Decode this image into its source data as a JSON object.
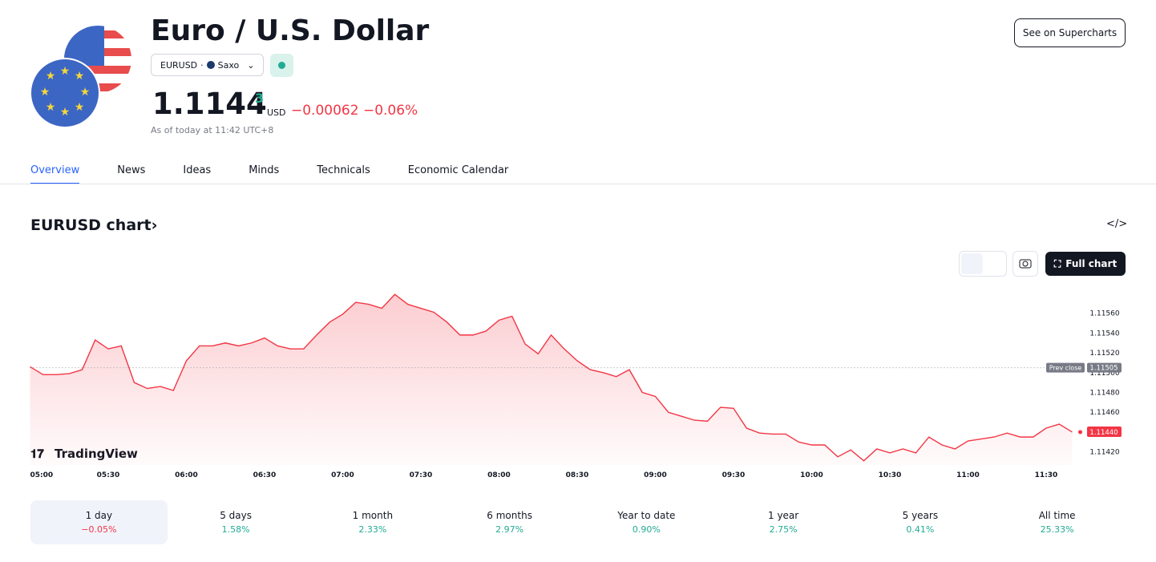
{
  "header": {
    "title": "Euro / U.S. Dollar",
    "symbol": "EURUSD",
    "exchange": "Saxo",
    "price": "1.1144",
    "price_sup": "3",
    "currency": "USD",
    "change": "−0.00062",
    "change_pct": "−0.06%",
    "as_of": "As of today at 11:42 UTC+8",
    "button": "See on Supercharts"
  },
  "tabs": [
    "Overview",
    "News",
    "Ideas",
    "Minds",
    "Technicals",
    "Economic Calendar"
  ],
  "chart_section": {
    "title": "EURUSD chart",
    "full_chart": "Full chart",
    "watermark": "TradingView"
  },
  "chart_data": {
    "type": "line",
    "categories": [
      "05:00",
      null,
      null,
      null,
      null,
      null,
      "05:30",
      null,
      null,
      null,
      null,
      null,
      "06:00",
      null,
      null,
      null,
      null,
      null,
      "06:30",
      null,
      null,
      null,
      null,
      null,
      "07:00",
      null,
      null,
      null,
      null,
      null,
      "07:30",
      null,
      null,
      null,
      null,
      null,
      "08:00",
      null,
      null,
      null,
      null,
      null,
      "08:30",
      null,
      null,
      null,
      null,
      null,
      "09:00",
      null,
      null,
      null,
      null,
      null,
      "09:30",
      null,
      null,
      null,
      null,
      null,
      "10:00",
      null,
      null,
      null,
      null,
      null,
      "10:30",
      null,
      null,
      null,
      null,
      null,
      "11:00",
      null,
      null,
      null,
      null,
      null,
      "11:30",
      null,
      null
    ],
    "series": [
      {
        "name": "EURUSD",
        "color": "#f23645",
        "values": [
          1.11506,
          1.11498,
          1.11498,
          1.11499,
          1.11503,
          1.11533,
          1.11524,
          1.11527,
          1.1149,
          1.11484,
          1.11486,
          1.11482,
          1.11512,
          1.11527,
          1.11527,
          1.1153,
          1.11527,
          1.1153,
          1.11535,
          1.11527,
          1.11524,
          1.11524,
          1.11538,
          1.11551,
          1.11559,
          1.11571,
          1.11569,
          1.11565,
          1.11579,
          1.11569,
          1.11565,
          1.11561,
          1.11551,
          1.11538,
          1.11538,
          1.11542,
          1.11553,
          1.11557,
          1.11529,
          1.11519,
          1.11538,
          1.11524,
          1.11512,
          1.11503,
          1.115,
          1.11496,
          1.11503,
          1.1148,
          1.11476,
          1.1146,
          1.11456,
          1.11452,
          1.11451,
          1.11465,
          1.11464,
          1.11444,
          1.11439,
          1.11438,
          1.11438,
          1.1143,
          1.11427,
          1.11427,
          1.11415,
          1.11422,
          1.11411,
          1.11423,
          1.11419,
          1.11423,
          1.11419,
          1.11435,
          1.11427,
          1.11423,
          1.11431,
          1.11433,
          1.11435,
          1.11439,
          1.11435,
          1.11435,
          1.11444,
          1.11448,
          1.1144
        ]
      }
    ],
    "ylim": [
      1.1141,
      1.1158
    ],
    "yticks": [
      {
        "value": 1.1142,
        "label": "1.11420"
      },
      {
        "value": 1.1144,
        "label": "1.11440"
      },
      {
        "value": 1.1146,
        "label": "1.11460"
      },
      {
        "value": 1.1148,
        "label": "1.11480"
      },
      {
        "value": 1.115,
        "label": "1.11500"
      },
      {
        "value": 1.1152,
        "label": "1.11520"
      },
      {
        "value": 1.1154,
        "label": "1.11540"
      },
      {
        "value": 1.1156,
        "label": "1.11560"
      }
    ],
    "prev_close": {
      "label": "Prev close",
      "value": 1.11505,
      "value_label": "1.11505"
    },
    "last_price": {
      "value": 1.1144,
      "label": "1.11440"
    }
  },
  "periods": [
    {
      "label": "1 day",
      "change": "−0.05%"
    },
    {
      "label": "5 days",
      "change": "1.58%"
    },
    {
      "label": "1 month",
      "change": "2.33%"
    },
    {
      "label": "6 months",
      "change": "2.97%"
    },
    {
      "label": "Year to date",
      "change": "0.90%"
    },
    {
      "label": "1 year",
      "change": "2.75%"
    },
    {
      "label": "5 years",
      "change": "0.41%"
    },
    {
      "label": "All time",
      "change": "25.33%"
    }
  ]
}
